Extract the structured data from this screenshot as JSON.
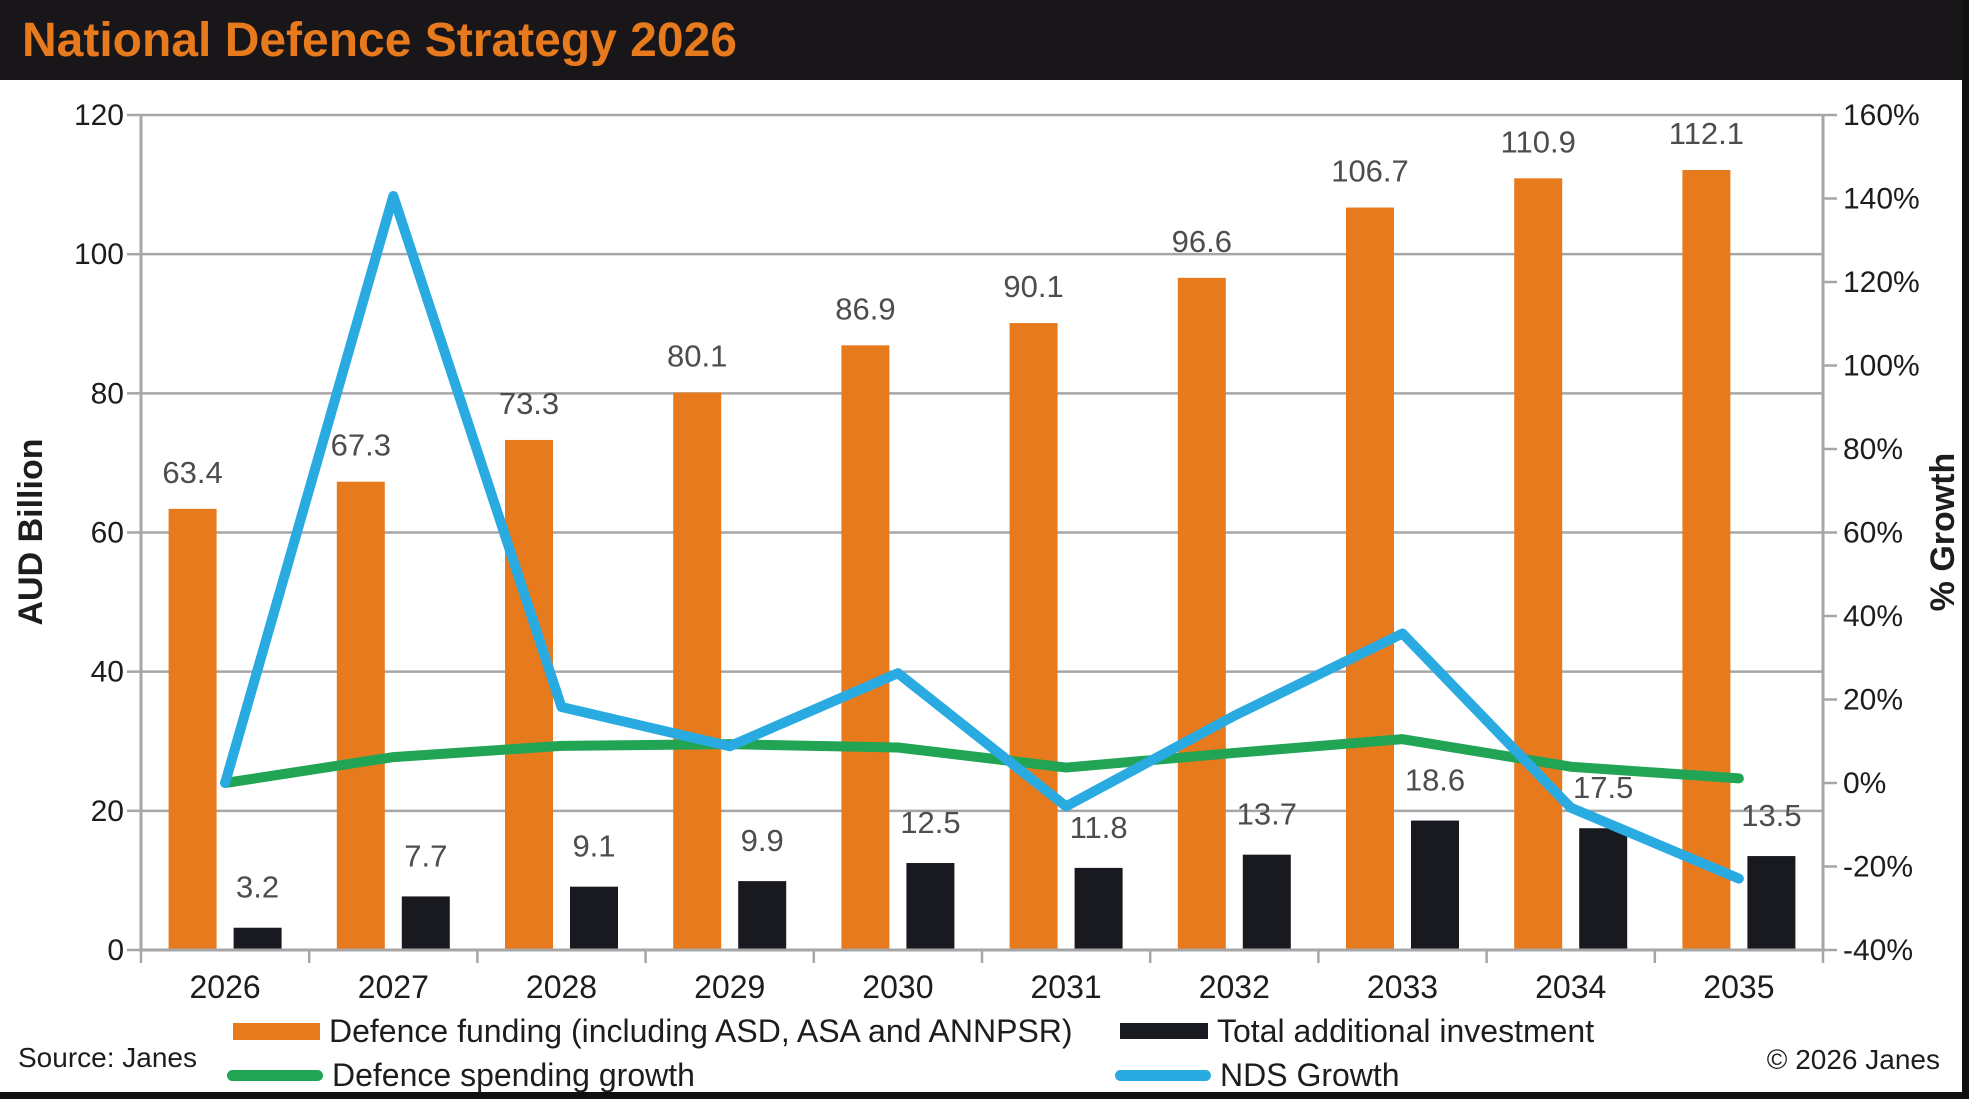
{
  "title": {
    "text": "National Defence Strategy 2026"
  },
  "colors": {
    "title_text": "#E87A1E",
    "title_bar_bg": "#19161A",
    "frame": "#101010",
    "gridline": "#A6A6A6",
    "axis_text": "#1D1D1D",
    "bar_label_text": "#4D4D4D",
    "background": "#FFFFFF"
  },
  "chart_data": {
    "type": "bar",
    "subtype": "combo-bar-line-dual-axis",
    "categories": [
      "2026",
      "2027",
      "2028",
      "2029",
      "2030",
      "2031",
      "2032",
      "2033",
      "2034",
      "2035"
    ],
    "series": [
      {
        "name": "Defence funding (including ASD, ASA and ANNPSR)",
        "kind": "bar",
        "axis": "left",
        "color": "#E87A1E",
        "values": [
          63.4,
          67.3,
          73.3,
          80.1,
          86.9,
          90.1,
          96.6,
          106.7,
          110.9,
          112.1
        ]
      },
      {
        "name": "Total additional investment",
        "kind": "bar",
        "axis": "left",
        "color": "#191920",
        "values": [
          3.2,
          7.7,
          9.1,
          9.9,
          12.5,
          11.8,
          13.7,
          18.6,
          17.5,
          13.5
        ]
      },
      {
        "name": "Defence spending growth",
        "kind": "line",
        "axis": "right",
        "color": "#22A455",
        "values": [
          0.0,
          6.2,
          8.9,
          9.3,
          8.5,
          3.7,
          7.2,
          10.5,
          3.9,
          1.1
        ]
      },
      {
        "name": "NDS Growth",
        "kind": "line",
        "axis": "right",
        "color": "#29ABE2",
        "values": [
          0.0,
          140.6,
          18.2,
          8.8,
          26.3,
          -5.6,
          16.1,
          35.8,
          -5.9,
          -22.9
        ]
      }
    ],
    "left_axis": {
      "title": "AUD Billion",
      "min": 0,
      "max": 120,
      "step": 20,
      "tick_labels": [
        "120",
        "100",
        "80",
        "60",
        "40",
        "20",
        "0"
      ]
    },
    "right_axis": {
      "title": "% Growth",
      "min": -40,
      "max": 160,
      "step": 20,
      "tick_labels": [
        "160%",
        "140%",
        "120%",
        "100%",
        "80%",
        "60%",
        "40%",
        "20%",
        "0%",
        "-20%",
        "-40%"
      ]
    },
    "grid": "horizontal-left-axis-steps",
    "legend_position": "bottom-two-columns",
    "bar_value_labels_shown": true
  },
  "legend": {
    "funding": "Defence funding (including ASD, ASA and ANNPSR)",
    "investment": "Total additional investment",
    "spending_growth": "Defence spending growth",
    "nds_growth": "NDS Growth"
  },
  "footer": {
    "source": "Source: Janes",
    "copyright": "© 2026 Janes"
  }
}
